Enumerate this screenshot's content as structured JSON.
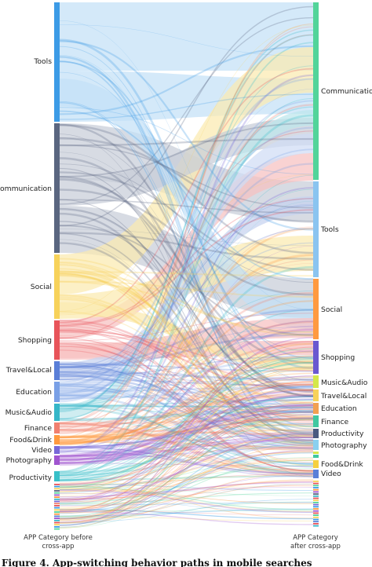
{
  "chart_data": {
    "type": "sankey",
    "left_title": [
      "APP Category before",
      "cross-app"
    ],
    "right_title": [
      "APP Category",
      "after cross-app"
    ],
    "caption": "Figure 4. App-switching behavior paths in mobile searches",
    "left_nodes": [
      {
        "name": "Tools",
        "color": "#3c9be6",
        "band": "#c4e0f6"
      },
      {
        "name": "Communication",
        "color": "#5a6680",
        "band": "#c8cdd8"
      },
      {
        "name": "Social",
        "color": "#f7d25a",
        "band": "#fbeab0"
      },
      {
        "name": "Shopping",
        "color": "#e8545a",
        "band": "#f6c0c0"
      },
      {
        "name": "Travel&Local",
        "color": "#5a7fd8",
        "band": "#c6d2f0"
      },
      {
        "name": "Education",
        "color": "#7aa0e6",
        "band": "#d0ddf5"
      },
      {
        "name": "Music&Audio",
        "color": "#35b6c8",
        "band": "#bde6ec"
      },
      {
        "name": "Finance",
        "color": "#f08070",
        "band": "#f8cfc8"
      },
      {
        "name": "Food&Drink",
        "color": "#ff9a40",
        "band": "#ffd9b5"
      },
      {
        "name": "Video",
        "color": "#7868d8",
        "band": "#d5cff2"
      },
      {
        "name": "Photography",
        "color": "#a055d0",
        "band": "#e0c8ef"
      },
      {
        "name": "Productivity",
        "color": "#38c0c8",
        "band": "#bfe9ec"
      }
    ],
    "right_nodes": [
      {
        "name": "Communication",
        "color": "#52d49a"
      },
      {
        "name": "Tools",
        "color": "#8ac4f0"
      },
      {
        "name": "Social",
        "color": "#ff9a40"
      },
      {
        "name": "Shopping",
        "color": "#6a58d0"
      },
      {
        "name": "Music&Audio",
        "color": "#d4e84a"
      },
      {
        "name": "Travel&Local",
        "color": "#f7d25a"
      },
      {
        "name": "Education",
        "color": "#f2a050"
      },
      {
        "name": "Finance",
        "color": "#40c8a0"
      },
      {
        "name": "Productivity",
        "color": "#4a5a80"
      },
      {
        "name": "Photography",
        "color": "#8ad0f0"
      },
      {
        "name": "Food&Drink",
        "color": "#f5d040"
      },
      {
        "name": "Video",
        "color": "#5a7fd8"
      }
    ]
  }
}
